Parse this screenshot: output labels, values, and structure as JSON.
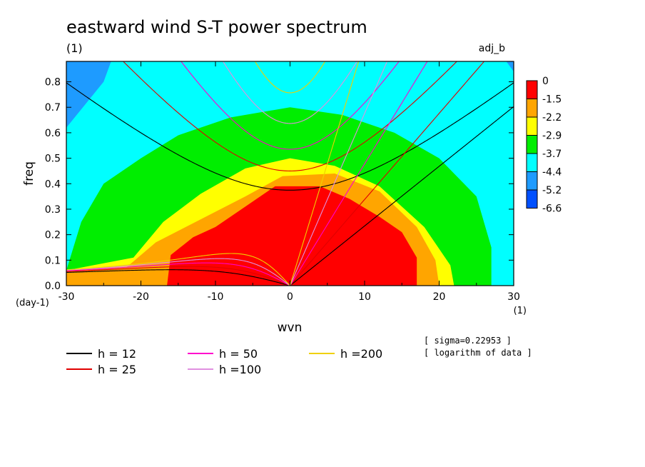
{
  "chart_data": {
    "type": "heatmap",
    "title": "eastward wind S-T power spectrum",
    "title_unit": "(1)",
    "panel_label": "adj_b",
    "xlabel": "wvn",
    "x_unit": "(1)",
    "ylabel": "freq",
    "y_unit": "(day-1)",
    "xlim": [
      -30,
      30
    ],
    "ylim": [
      0.0,
      0.88
    ],
    "xticks": [
      "-30",
      "-20",
      "-10",
      "0",
      "10",
      "20",
      "30"
    ],
    "yticks": [
      "0.0",
      "0.1",
      "0.2",
      "0.3",
      "0.4",
      "0.5",
      "0.6",
      "0.7",
      "0.8"
    ],
    "colorbar": {
      "levels": [
        "0",
        "-1.5",
        "-2.2",
        "-2.9",
        "-3.7",
        "-4.4",
        "-5.2",
        "-6.6"
      ],
      "colors": [
        "#ff0000",
        "#ffa500",
        "#ffff00",
        "#00ee00",
        "#00ffff",
        "#1e9bff",
        "#0050ff"
      ]
    },
    "field_levels": [
      {
        "value": -5.2,
        "color": "#1e9bff",
        "boundary": [
          [
            -30,
            0.62
          ],
          [
            -25,
            0.8
          ],
          [
            -24,
            0.88
          ]
        ],
        "boundary2": [
          [
            29,
            0.88
          ],
          [
            30,
            0.84
          ]
        ]
      },
      {
        "value": -4.4,
        "color": "#00ffff",
        "boundary": [
          [
            -30,
            0.45
          ],
          [
            -26,
            0.62
          ],
          [
            -20,
            0.72
          ],
          [
            -15,
            0.82
          ],
          [
            -8,
            0.86
          ],
          [
            0,
            0.87
          ],
          [
            8,
            0.86
          ],
          [
            15,
            0.82
          ],
          [
            22,
            0.79
          ],
          [
            28,
            0.78
          ],
          [
            30,
            0.76
          ]
        ]
      },
      {
        "value": -3.7,
        "color": "#00ee00",
        "boundary": [
          [
            -30,
            0.06
          ],
          [
            -28,
            0.25
          ],
          [
            -25,
            0.4
          ],
          [
            -20,
            0.5
          ],
          [
            -15,
            0.59
          ],
          [
            -8,
            0.66
          ],
          [
            0,
            0.7
          ],
          [
            7,
            0.67
          ],
          [
            14,
            0.6
          ],
          [
            20,
            0.5
          ],
          [
            25,
            0.35
          ],
          [
            27,
            0.15
          ],
          [
            27,
            0.0
          ]
        ]
      },
      {
        "value": -2.9,
        "color": "#ffff00",
        "boundary": [
          [
            -30,
            0.06
          ],
          [
            -21,
            0.11
          ],
          [
            -17,
            0.25
          ],
          [
            -12,
            0.36
          ],
          [
            -6,
            0.46
          ],
          [
            0,
            0.5
          ],
          [
            6,
            0.47
          ],
          [
            12,
            0.39
          ],
          [
            18,
            0.23
          ],
          [
            21.5,
            0.08
          ],
          [
            22,
            0.0
          ]
        ]
      },
      {
        "value": -2.2,
        "color": "#ffa500",
        "boundary": [
          [
            -30,
            0.06
          ],
          [
            -22,
            0.07
          ],
          [
            -18,
            0.17
          ],
          [
            -12,
            0.26
          ],
          [
            -6,
            0.35
          ],
          [
            -1,
            0.43
          ],
          [
            6,
            0.44
          ],
          [
            12,
            0.37
          ],
          [
            17,
            0.23
          ],
          [
            19.5,
            0.1
          ],
          [
            20,
            0.0
          ]
        ]
      },
      {
        "value": -1.5,
        "color": "#ff0000",
        "boundary": [
          [
            -16.5,
            0.0
          ],
          [
            -16,
            0.12
          ],
          [
            -13,
            0.19
          ],
          [
            -10,
            0.23
          ],
          [
            -6,
            0.31
          ],
          [
            -2,
            0.39
          ],
          [
            4,
            0.39
          ],
          [
            8,
            0.34
          ],
          [
            12,
            0.27
          ],
          [
            15,
            0.21
          ],
          [
            17,
            0.11
          ],
          [
            17,
            0.0
          ]
        ]
      }
    ],
    "series": [
      {
        "name": "h = 12",
        "color": "#000000",
        "gw_h": 12
      },
      {
        "name": "h = 25",
        "color": "#e00000",
        "gw_h": 25
      },
      {
        "name": "h = 50",
        "color": "#ff00cc",
        "gw_h": 50
      },
      {
        "name": "h =100",
        "color": "#e090e0",
        "gw_h": 100
      },
      {
        "name": "h =200",
        "color": "#f0d000",
        "gw_h": 200
      }
    ],
    "annotations": [
      "[ sigma=0.22953 ]",
      "[ logarithm of data ]"
    ]
  }
}
